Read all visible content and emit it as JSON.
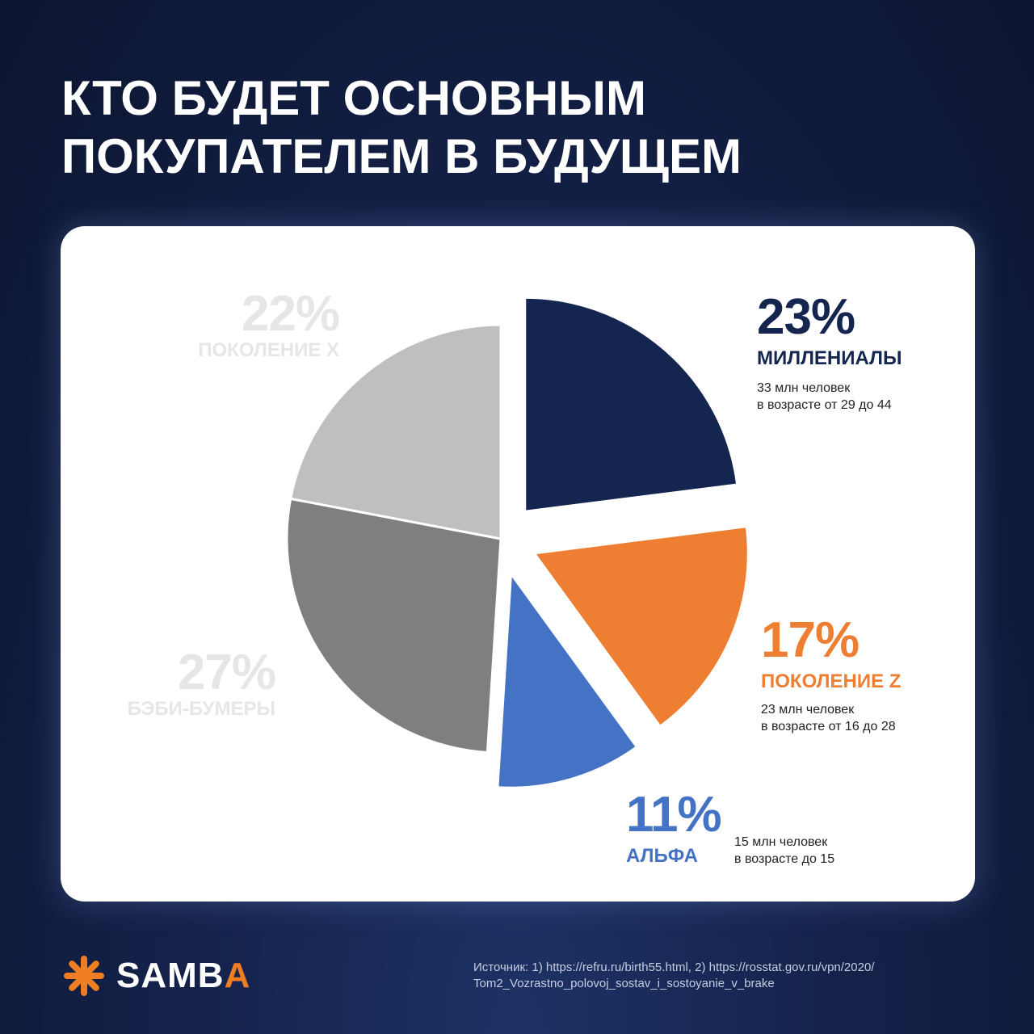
{
  "title": {
    "line1": "КТО БУДЕТ ОСНОВНЫМ",
    "line2": "ПОКУПАТЕЛЕМ В БУДУЩЕМ"
  },
  "chart_data": {
    "type": "pie",
    "title": "КТО БУДЕТ ОСНОВНЫМ ПОКУПАТЕЛЕМ В БУДУЩЕМ",
    "slices": [
      {
        "label": "МИЛЛЕНИАЛЫ",
        "value": 23,
        "value_label": "23%",
        "color": "#142550",
        "exploded": true,
        "desc1": "33 млн человек",
        "desc2": "в возрасте от 29 до 44"
      },
      {
        "label": "ПОКОЛЕНИЕ Z",
        "value": 17,
        "value_label": "17%",
        "color": "#ee7f32",
        "exploded": true,
        "desc1": "23 млн человек",
        "desc2": "в возрасте от 16 до 28"
      },
      {
        "label": "АЛЬФА",
        "value": 11,
        "value_label": "11%",
        "color": "#4472c4",
        "exploded": true,
        "desc1": "15 млн человек",
        "desc2": "в возрасте до 15"
      },
      {
        "label": "БЭБИ-БУМЕРЫ",
        "value": 27,
        "value_label": "27%",
        "color": "#7f7f7f",
        "exploded": false
      },
      {
        "label": "ПОКОЛЕНИЕ X",
        "value": 22,
        "value_label": "22%",
        "color": "#bfbfbf",
        "exploded": false
      }
    ],
    "colors": {
      "faded_label": "#e6e6e6",
      "millennials_label": "#142550",
      "genz_label": "#ee7f32",
      "alpha_label": "#4472c4"
    }
  },
  "logo": {
    "icon": "asterisk-icon",
    "text_main": "SAMB",
    "text_accent": "A",
    "accent_color": "#ef7d21"
  },
  "source": {
    "line1": "Источник: 1) https://refru.ru/birth55.html, 2) https://rosstat.gov.ru/vpn/2020/",
    "line2": "Tom2_Vozrastno_polovoj_sostav_i_sostoyanie_v_brake"
  }
}
